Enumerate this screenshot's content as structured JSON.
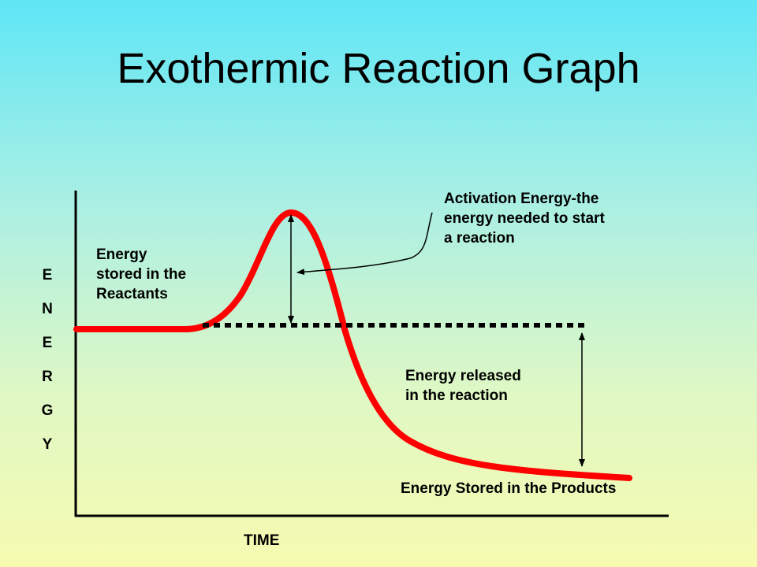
{
  "title": "Exothermic Reaction Graph",
  "axes": {
    "y_label_letters": [
      "E",
      "N",
      "E",
      "R",
      "G",
      "Y"
    ],
    "x_label": "TIME"
  },
  "annotations": {
    "reactants": [
      "Energy",
      "stored in the",
      "Reactants"
    ],
    "activation": [
      "Activation Energy-the",
      "energy needed to start",
      "a reaction"
    ],
    "released": [
      "Energy released",
      "in the reaction"
    ],
    "products": "Energy Stored in the Products"
  },
  "colors": {
    "curve": "#ff0000",
    "axes": "#000000",
    "dotted_reference_line": "#000000"
  }
}
